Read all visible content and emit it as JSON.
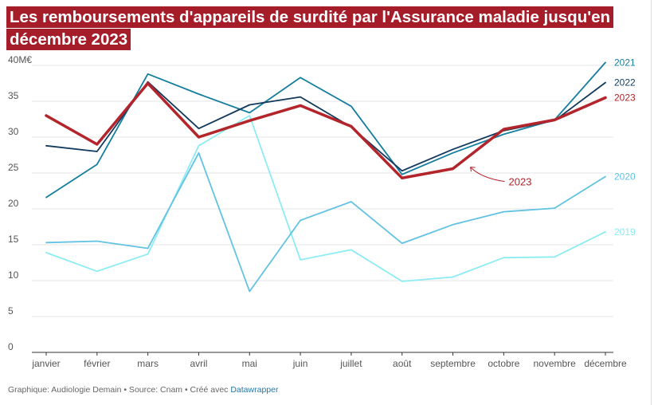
{
  "page": {
    "title": "Les remboursements d'appareils de surdité par l'Assurance maladie jusqu'en décembre 2023"
  },
  "footer": {
    "text": "Graphique: Audiologie Demain • Source: Cnam • Créé avec ",
    "brand": "Datawrapper"
  },
  "colors": {
    "title_bg": "#a61d2a",
    "2019": "#8cecf3",
    "2020": "#62c2e2",
    "2021": "#157e9e",
    "2022": "#123a5c",
    "2023": "#b3242b"
  },
  "chart_data": {
    "type": "line",
    "title": "Les remboursements d'appareils de surdité par l'Assurance maladie jusqu'en décembre 2023",
    "xlabel": "",
    "ylabel": "",
    "ylim": [
      0,
      40
    ],
    "y_unit_top_label": "40M€",
    "y_ticks": [
      0,
      5,
      10,
      15,
      20,
      25,
      30,
      35,
      40
    ],
    "grid": true,
    "categories": [
      "janvier",
      "février",
      "mars",
      "avril",
      "mai",
      "juin",
      "juillet",
      "août",
      "septembre",
      "octobre",
      "novembre",
      "décembre"
    ],
    "series": [
      {
        "name": "2019",
        "values": [
          13.9,
          11.3,
          13.7,
          28.8,
          33.0,
          12.9,
          14.3,
          9.9,
          10.5,
          13.2,
          13.3,
          16.8
        ]
      },
      {
        "name": "2020",
        "values": [
          15.3,
          15.5,
          14.5,
          27.8,
          8.5,
          18.4,
          21.0,
          15.2,
          17.8,
          19.6,
          20.1,
          24.5
        ]
      },
      {
        "name": "2021",
        "values": [
          21.6,
          26.2,
          38.8,
          36.0,
          33.4,
          38.3,
          34.3,
          24.8,
          27.8,
          30.4,
          32.4,
          40.4
        ]
      },
      {
        "name": "2022",
        "values": [
          28.8,
          28.0,
          37.7,
          31.2,
          34.5,
          35.6,
          31.4,
          25.3,
          28.3,
          30.9,
          32.3,
          37.6
        ]
      },
      {
        "name": "2023",
        "values": [
          33.0,
          29.0,
          37.5,
          30.0,
          32.3,
          34.4,
          31.5,
          24.3,
          25.6,
          31.1,
          32.4,
          35.5
        ]
      }
    ],
    "annotation": {
      "text": "2023",
      "points_to": {
        "category": "septembre",
        "value": 25.6
      }
    }
  }
}
